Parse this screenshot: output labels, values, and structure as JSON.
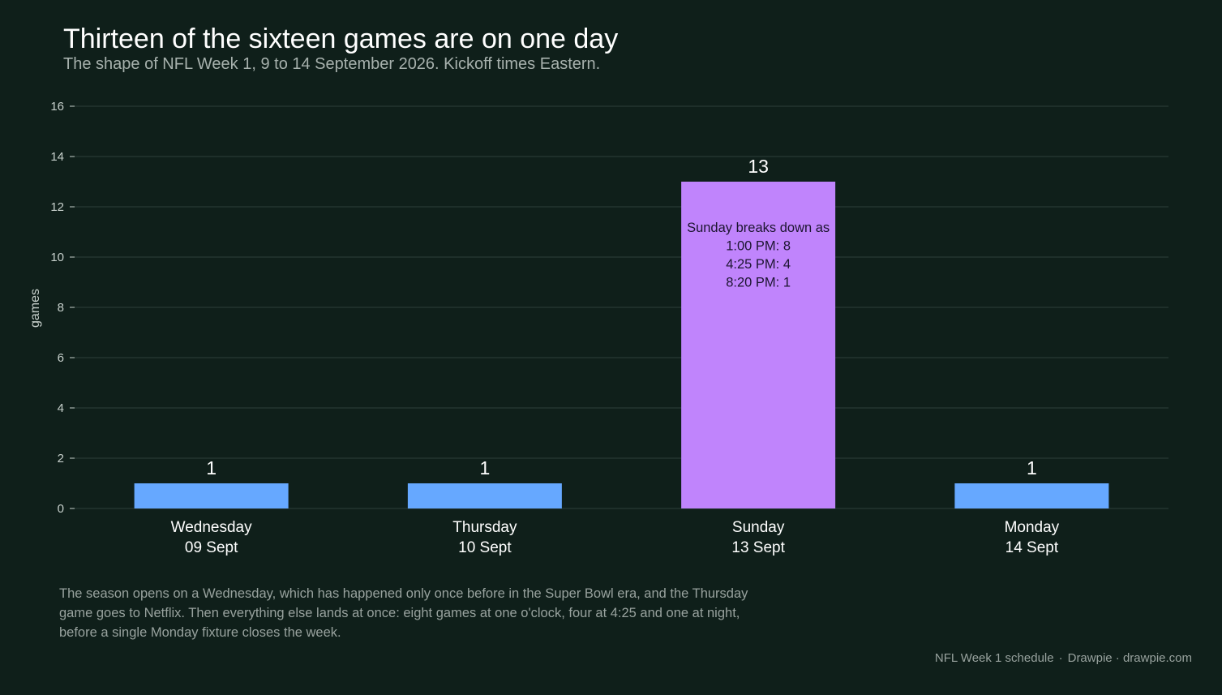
{
  "title": "Thirteen of the sixteen games are on one day",
  "subtitle": "The shape of NFL Week 1, 9 to 14 September 2026. Kickoff times Eastern.",
  "note": "The season opens on a Wednesday, which has happened only once before in the Super Bowl era, and the Thursday game goes to Netflix. Then everything else lands at once: eight games at one o'clock, four at 4:25 and one at night, before a single Monday fixture closes the week.",
  "footer": {
    "source": "NFL Week 1 schedule",
    "separator": "·",
    "credit": "Drawpie · drawpie.com"
  },
  "chart_data": {
    "type": "bar",
    "title": "Thirteen of the sixteen games are on one day",
    "subtitle": "The shape of NFL Week 1, 9 to 14 September 2026. Kickoff times Eastern.",
    "xlabel": "",
    "ylabel": "games",
    "ylim": [
      0,
      16
    ],
    "yticks": [
      0,
      2,
      4,
      6,
      8,
      10,
      12,
      14,
      16
    ],
    "grid": true,
    "categories": [
      [
        "Wednesday",
        "09 Sept"
      ],
      [
        "Thursday",
        "10 Sept"
      ],
      [
        "Sunday",
        "13 Sept"
      ],
      [
        "Monday",
        "14 Sept"
      ]
    ],
    "values": [
      1,
      1,
      13,
      1
    ],
    "bar_colors": [
      "#66a8ff",
      "#66a8ff",
      "#c084fc",
      "#66a8ff"
    ],
    "annotation": {
      "category_index": 2,
      "lines": [
        "Sunday breaks down as",
        "1:00 PM: 8",
        "4:25 PM: 4",
        "8:20 PM: 1"
      ]
    }
  },
  "colors": {
    "background": "#0f1f1a",
    "grid": "#24352f",
    "tick_text": "#c7d0cc",
    "label_text": "#ffffff",
    "annotation_text": "#1c1530"
  }
}
